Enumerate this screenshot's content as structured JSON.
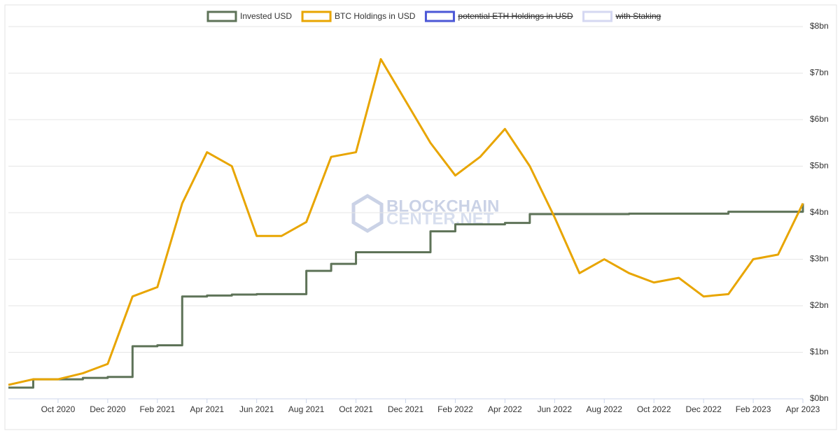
{
  "chart_data": {
    "type": "line",
    "legend": "top",
    "watermark": [
      "BLOCKCHAIN",
      "CENTER.NET"
    ],
    "x": [
      "2020-08",
      "2020-09",
      "2020-10",
      "2020-11",
      "2020-12",
      "2021-01",
      "2021-02",
      "2021-03",
      "2021-04",
      "2021-05",
      "2021-06",
      "2021-07",
      "2021-08",
      "2021-09",
      "2021-10",
      "2021-11",
      "2021-12",
      "2022-01",
      "2022-02",
      "2022-03",
      "2022-04",
      "2022-05",
      "2022-06",
      "2022-07",
      "2022-08",
      "2022-09",
      "2022-10",
      "2022-11",
      "2022-12",
      "2023-01",
      "2023-02",
      "2023-03",
      "2023-04"
    ],
    "xlim": [
      "2020-08",
      "2023-04"
    ],
    "xticks": [
      {
        "value": "2020-10",
        "label": "Oct 2020"
      },
      {
        "value": "2020-12",
        "label": "Dec 2020"
      },
      {
        "value": "2021-02",
        "label": "Feb 2021"
      },
      {
        "value": "2021-04",
        "label": "Apr 2021"
      },
      {
        "value": "2021-06",
        "label": "Jun 2021"
      },
      {
        "value": "2021-08",
        "label": "Aug 2021"
      },
      {
        "value": "2021-10",
        "label": "Oct 2021"
      },
      {
        "value": "2021-12",
        "label": "Dec 2021"
      },
      {
        "value": "2022-02",
        "label": "Feb 2022"
      },
      {
        "value": "2022-04",
        "label": "Apr 2022"
      },
      {
        "value": "2022-06",
        "label": "Jun 2022"
      },
      {
        "value": "2022-08",
        "label": "Aug 2022"
      },
      {
        "value": "2022-10",
        "label": "Oct 2022"
      },
      {
        "value": "2022-12",
        "label": "Dec 2022"
      },
      {
        "value": "2023-02",
        "label": "Feb 2023"
      },
      {
        "value": "2023-04",
        "label": "Apr 2023"
      }
    ],
    "ylim": [
      0,
      8
    ],
    "yticks": [
      {
        "value": 0,
        "label": "$0bn"
      },
      {
        "value": 1,
        "label": "$1bn"
      },
      {
        "value": 2,
        "label": "$2bn"
      },
      {
        "value": 3,
        "label": "$3bn"
      },
      {
        "value": 4,
        "label": "$4bn"
      },
      {
        "value": 5,
        "label": "$5bn"
      },
      {
        "value": 6,
        "label": "$6bn"
      },
      {
        "value": 7,
        "label": "$7bn"
      },
      {
        "value": 8,
        "label": "$8bn"
      }
    ],
    "grid": true,
    "series": [
      {
        "name": "Invested USD",
        "color": "#5e7358",
        "step": true,
        "values": [
          0.24,
          0.42,
          0.42,
          0.45,
          0.47,
          1.13,
          1.15,
          2.2,
          2.22,
          2.24,
          2.25,
          2.25,
          2.75,
          2.9,
          3.15,
          3.15,
          3.15,
          3.6,
          3.75,
          3.75,
          3.78,
          3.97,
          3.97,
          3.97,
          3.97,
          3.98,
          3.98,
          3.98,
          3.98,
          4.02,
          4.02,
          4.02,
          4.2
        ]
      },
      {
        "name": "BTC Holdings in USD",
        "color": "#e8a500",
        "values": [
          0.3,
          0.42,
          0.42,
          0.55,
          0.75,
          2.2,
          2.4,
          4.2,
          5.3,
          5.0,
          3.5,
          3.5,
          3.8,
          5.2,
          5.3,
          7.3,
          6.4,
          5.5,
          4.8,
          5.2,
          5.8,
          5.0,
          3.9,
          2.7,
          3.0,
          2.7,
          2.5,
          2.6,
          2.2,
          2.25,
          3.0,
          3.1,
          4.2
        ]
      }
    ],
    "hidden_series": [
      {
        "name": "potential ETH Holdings in USD",
        "color": "#4b57d6"
      },
      {
        "name": "with Staking",
        "color": "#d5d8f2"
      }
    ]
  }
}
